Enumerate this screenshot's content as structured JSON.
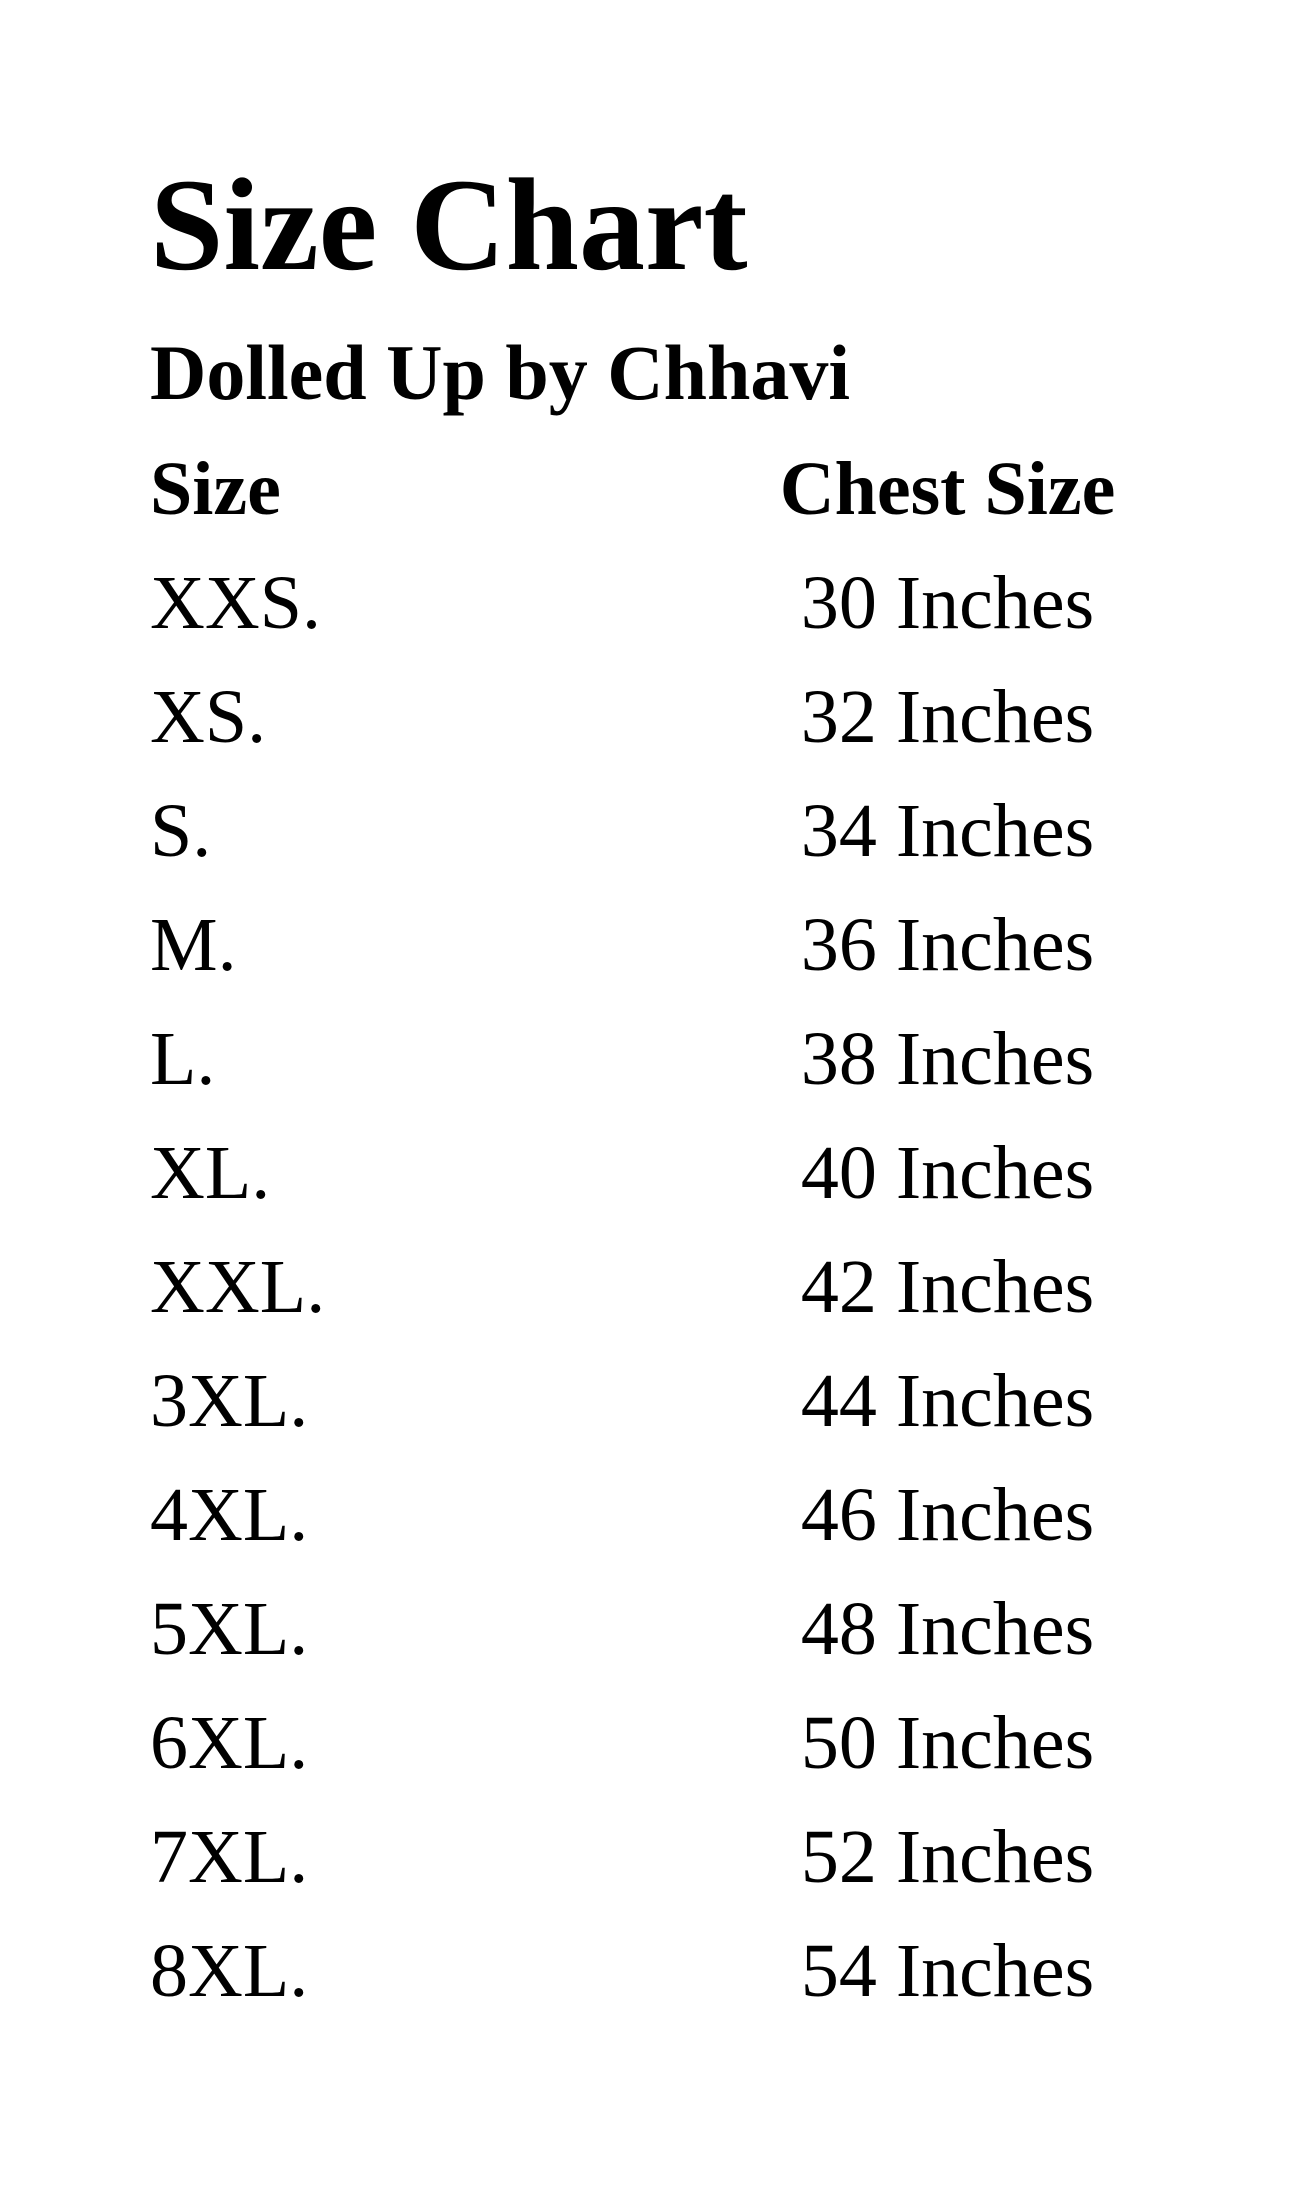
{
  "page": {
    "title": "Size Chart",
    "subtitle": "Dolled Up by Chhavi"
  },
  "size_chart": {
    "columns": [
      "Size",
      "Chest Size"
    ],
    "rows": [
      {
        "size": "XXS.",
        "chest": "30 Inches"
      },
      {
        "size": "XS.",
        "chest": "32 Inches"
      },
      {
        "size": "S.",
        "chest": "34 Inches"
      },
      {
        "size": "M.",
        "chest": "36 Inches"
      },
      {
        "size": "L.",
        "chest": "38 Inches"
      },
      {
        "size": "XL.",
        "chest": "40 Inches"
      },
      {
        "size": "XXL.",
        "chest": "42 Inches"
      },
      {
        "size": "3XL.",
        "chest": "44 Inches"
      },
      {
        "size": "4XL.",
        "chest": "46 Inches"
      },
      {
        "size": "5XL.",
        "chest": "48 Inches"
      },
      {
        "size": "6XL.",
        "chest": "50 Inches"
      },
      {
        "size": "7XL.",
        "chest": "52 Inches"
      },
      {
        "size": "8XL.",
        "chest": "54 Inches"
      }
    ]
  },
  "colors": {
    "text": "#000000",
    "background": "#ffffff"
  }
}
